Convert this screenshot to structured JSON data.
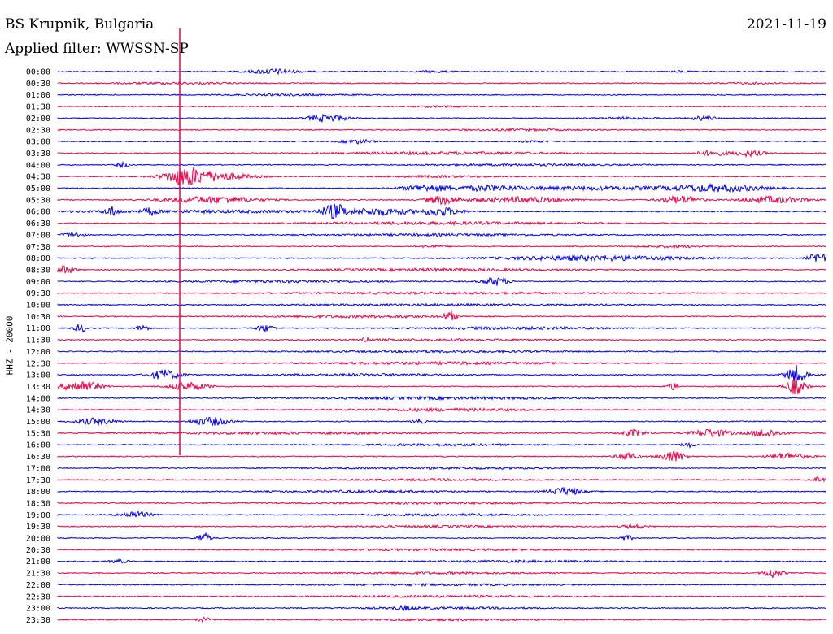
{
  "header": {
    "station": "BS Krupnik, Bulgaria",
    "filter": "Applied filter: WWSSN-SP",
    "date": "2021-11-19"
  },
  "chart_data": {
    "type": "line",
    "title": "BS Krupnik, Bulgaria",
    "subtitle": "Applied filter: WWSSN-SP",
    "date": "2021-11-19",
    "ylabel": "HHZ - 20000",
    "xlabel": "",
    "trace_colors": [
      "#0000ee",
      "#ee0044"
    ],
    "marker_color": "#ee0044",
    "rows": [
      {
        "label": "00:00",
        "events": [
          [
            0.28,
            0.08,
            3
          ],
          [
            0.49,
            0.05,
            1.2
          ],
          [
            0.81,
            0.03,
            1
          ]
        ]
      },
      {
        "label": "00:30",
        "events": [
          [
            0.15,
            0.2,
            0.9
          ],
          [
            0.9,
            0.1,
            0.8
          ]
        ]
      },
      {
        "label": "01:00",
        "events": [
          [
            0.3,
            0.2,
            0.8
          ]
        ]
      },
      {
        "label": "01:30",
        "events": [
          [
            0.5,
            0.1,
            0.8
          ]
        ]
      },
      {
        "label": "02:00",
        "events": [
          [
            0.35,
            0.06,
            4.5
          ],
          [
            0.84,
            0.04,
            2.5
          ],
          [
            0.74,
            0.08,
            1.2
          ]
        ]
      },
      {
        "label": "02:30",
        "events": [
          [
            0.6,
            0.2,
            0.9
          ]
        ]
      },
      {
        "label": "03:00",
        "events": [
          [
            0.39,
            0.05,
            2.5
          ],
          [
            0.62,
            0.05,
            1
          ]
        ]
      },
      {
        "label": "03:30",
        "events": [
          [
            0.85,
            0.05,
            3
          ],
          [
            0.9,
            0.05,
            3.5
          ],
          [
            0.5,
            0.4,
            1.3
          ]
        ]
      },
      {
        "label": "04:00",
        "events": [
          [
            0.085,
            0.02,
            3
          ],
          [
            0.6,
            0.3,
            1
          ]
        ]
      },
      {
        "label": "04:30",
        "events": [
          [
            0.165,
            0.06,
            9
          ],
          [
            0.2,
            0.12,
            5
          ],
          [
            0.5,
            0.2,
            1
          ]
        ]
      },
      {
        "label": "05:00",
        "events": [
          [
            0.48,
            0.08,
            4
          ],
          [
            0.56,
            0.1,
            3
          ],
          [
            0.86,
            0.15,
            4
          ],
          [
            0.7,
            0.3,
            2
          ]
        ]
      },
      {
        "label": "05:30",
        "events": [
          [
            0.2,
            0.15,
            4
          ],
          [
            0.5,
            0.05,
            5
          ],
          [
            0.6,
            0.15,
            3.5
          ],
          [
            0.81,
            0.06,
            5
          ],
          [
            0.93,
            0.1,
            4
          ]
        ]
      },
      {
        "label": "06:00",
        "events": [
          [
            0.07,
            0.02,
            5
          ],
          [
            0.12,
            0.02,
            4
          ],
          [
            0.36,
            0.04,
            8
          ],
          [
            0.42,
            0.1,
            4
          ],
          [
            0.5,
            0.06,
            5
          ],
          [
            0.2,
            0.5,
            1.5
          ]
        ]
      },
      {
        "label": "06:30",
        "events": [
          [
            0.5,
            0.4,
            1.5
          ]
        ]
      },
      {
        "label": "07:00",
        "events": [
          [
            0.02,
            0.03,
            3
          ],
          [
            0.5,
            0.4,
            1
          ]
        ]
      },
      {
        "label": "07:30",
        "events": [
          [
            0.49,
            0.04,
            1.5
          ],
          [
            0.8,
            0.1,
            1.2
          ]
        ]
      },
      {
        "label": "08:00",
        "events": [
          [
            0.7,
            0.3,
            3
          ],
          [
            0.99,
            0.03,
            7
          ]
        ]
      },
      {
        "label": "08:30",
        "events": [
          [
            0.01,
            0.03,
            5
          ],
          [
            0.5,
            0.4,
            1.3
          ]
        ]
      },
      {
        "label": "09:00",
        "events": [
          [
            0.57,
            0.04,
            5
          ],
          [
            0.3,
            0.3,
            1.2
          ]
        ]
      },
      {
        "label": "09:30",
        "events": [
          [
            0.5,
            0.5,
            0.9
          ]
        ]
      },
      {
        "label": "10:00",
        "events": [
          [
            0.5,
            0.5,
            0.8
          ]
        ]
      },
      {
        "label": "10:30",
        "events": [
          [
            0.51,
            0.02,
            5
          ],
          [
            0.4,
            0.3,
            1.3
          ]
        ]
      },
      {
        "label": "11:00",
        "events": [
          [
            0.03,
            0.02,
            5
          ],
          [
            0.11,
            0.02,
            4
          ],
          [
            0.27,
            0.03,
            4
          ],
          [
            0.6,
            0.3,
            1.3
          ]
        ]
      },
      {
        "label": "11:30",
        "events": [
          [
            0.4,
            0.01,
            4
          ],
          [
            0.5,
            0.3,
            1
          ]
        ]
      },
      {
        "label": "12:00",
        "events": [
          [
            0.5,
            0.4,
            1
          ]
        ]
      },
      {
        "label": "12:30",
        "events": [
          [
            0.5,
            0.4,
            1.3
          ]
        ]
      },
      {
        "label": "13:00",
        "events": [
          [
            0.14,
            0.05,
            6
          ],
          [
            0.96,
            0.03,
            12
          ],
          [
            0.4,
            0.3,
            1.2
          ]
        ]
      },
      {
        "label": "13:30",
        "events": [
          [
            0.03,
            0.06,
            7
          ],
          [
            0.17,
            0.06,
            5
          ],
          [
            0.8,
            0.02,
            4
          ],
          [
            0.96,
            0.03,
            10
          ]
        ]
      },
      {
        "label": "14:00",
        "events": [
          [
            0.5,
            0.4,
            1.3
          ]
        ]
      },
      {
        "label": "14:30",
        "events": [
          [
            0.5,
            0.3,
            1.5
          ]
        ]
      },
      {
        "label": "15:00",
        "events": [
          [
            0.05,
            0.06,
            4
          ],
          [
            0.2,
            0.06,
            5
          ],
          [
            0.47,
            0.02,
            3
          ]
        ]
      },
      {
        "label": "15:30",
        "events": [
          [
            0.75,
            0.04,
            4
          ],
          [
            0.85,
            0.06,
            5
          ],
          [
            0.92,
            0.05,
            5
          ],
          [
            0.3,
            0.4,
            1.2
          ]
        ]
      },
      {
        "label": "16:00",
        "events": [
          [
            0.82,
            0.02,
            3
          ],
          [
            0.5,
            0.3,
            1
          ]
        ]
      },
      {
        "label": "16:30",
        "events": [
          [
            0.74,
            0.03,
            5
          ],
          [
            0.8,
            0.04,
            7
          ],
          [
            0.95,
            0.06,
            4
          ]
        ]
      },
      {
        "label": "17:00",
        "events": [
          [
            0.5,
            0.4,
            0.9
          ]
        ]
      },
      {
        "label": "17:30",
        "events": [
          [
            0.99,
            0.02,
            3
          ],
          [
            0.5,
            0.3,
            0.9
          ]
        ]
      },
      {
        "label": "18:00",
        "events": [
          [
            0.66,
            0.05,
            5
          ],
          [
            0.4,
            0.3,
            1
          ]
        ]
      },
      {
        "label": "18:30",
        "events": [
          [
            0.5,
            0.4,
            0.9
          ]
        ]
      },
      {
        "label": "19:00",
        "events": [
          [
            0.1,
            0.05,
            4
          ],
          [
            0.5,
            0.3,
            1
          ]
        ]
      },
      {
        "label": "19:30",
        "events": [
          [
            0.75,
            0.04,
            2.5
          ],
          [
            0.5,
            0.3,
            0.9
          ]
        ]
      },
      {
        "label": "20:00",
        "events": [
          [
            0.19,
            0.02,
            6
          ],
          [
            0.74,
            0.02,
            3
          ]
        ]
      },
      {
        "label": "20:30",
        "events": [
          [
            0.5,
            0.4,
            0.9
          ]
        ]
      },
      {
        "label": "21:00",
        "events": [
          [
            0.08,
            0.03,
            2
          ],
          [
            0.6,
            0.3,
            1
          ]
        ]
      },
      {
        "label": "21:30",
        "events": [
          [
            0.93,
            0.03,
            6
          ],
          [
            0.5,
            0.3,
            1
          ]
        ]
      },
      {
        "label": "22:00",
        "events": [
          [
            0.5,
            0.4,
            0.9
          ]
        ]
      },
      {
        "label": "22:30",
        "events": [
          [
            0.5,
            0.4,
            0.9
          ]
        ]
      },
      {
        "label": "23:00",
        "events": [
          [
            0.45,
            0.03,
            2
          ],
          [
            0.5,
            0.3,
            0.9
          ]
        ]
      },
      {
        "label": "23:30",
        "events": [
          [
            0.19,
            0.02,
            3
          ],
          [
            0.5,
            0.3,
            0.9
          ]
        ]
      }
    ],
    "marker": {
      "time": "04:30 row, x 0.16",
      "row_from": 0,
      "row_to": 33
    }
  }
}
